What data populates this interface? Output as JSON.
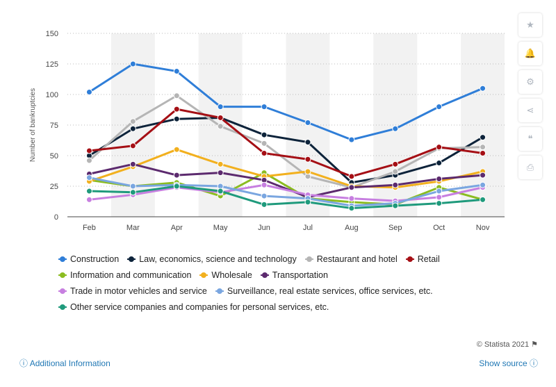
{
  "chart_data": {
    "type": "line",
    "categories": [
      "Feb",
      "Mar",
      "Apr",
      "May",
      "Jun",
      "Jul",
      "Aug",
      "Sep",
      "Oct",
      "Nov"
    ],
    "ylabel": "Number of bankruptcies",
    "xlabel": "",
    "ylim": [
      0,
      150
    ],
    "yticks": [
      0,
      25,
      50,
      75,
      100,
      125,
      150
    ],
    "grid": "horizontal dotted",
    "legend_position": "bottom",
    "series": [
      {
        "name": "Construction",
        "color": "#2f7ed8",
        "values": [
          102,
          125,
          119,
          90,
          90,
          77,
          63,
          72,
          90,
          105
        ]
      },
      {
        "name": "Law, economics, science and technology",
        "color": "#0d233a",
        "values": [
          50,
          72,
          80,
          81,
          67,
          61,
          28,
          34,
          44,
          65
        ]
      },
      {
        "name": "Restaurant and hotel",
        "color": "#b5b5b5",
        "values": [
          46,
          78,
          99,
          74,
          60,
          33,
          24,
          37,
          56,
          57
        ]
      },
      {
        "name": "Retail",
        "color": "#a50f15",
        "values": [
          54,
          58,
          88,
          81,
          52,
          47,
          33,
          43,
          57,
          52
        ]
      },
      {
        "name": "Information and communication",
        "color": "#8bbc21",
        "values": [
          30,
          25,
          28,
          17,
          36,
          15,
          12,
          10,
          24,
          14
        ]
      },
      {
        "name": "Wholesale",
        "color": "#f2b01e",
        "values": [
          29,
          41,
          55,
          43,
          33,
          37,
          25,
          24,
          29,
          37
        ]
      },
      {
        "name": "Transportation",
        "color": "#5c2a6e",
        "values": [
          35,
          43,
          34,
          36,
          30,
          16,
          24,
          26,
          31,
          34
        ]
      },
      {
        "name": "Trade in motor vehicles and service",
        "color": "#c77fe0",
        "values": [
          14,
          18,
          24,
          20,
          26,
          18,
          15,
          13,
          16,
          24
        ]
      },
      {
        "name": "Surveillance, real estate services, office services, etc.",
        "color": "#7aa6e0",
        "values": [
          32,
          25,
          26,
          25,
          17,
          15,
          9,
          11,
          21,
          26
        ]
      },
      {
        "name": "Other service companies and companies for personal services, etc.",
        "color": "#1f9a7c",
        "values": [
          21,
          20,
          25,
          21,
          10,
          12,
          7,
          9,
          11,
          14
        ]
      }
    ]
  },
  "toolbar": {
    "icons": [
      "star-icon",
      "bell-icon",
      "gear-icon",
      "share-icon",
      "quote-icon",
      "print-icon"
    ],
    "glyphs": [
      "★",
      "🔔",
      "⚙",
      "⋖",
      "❝",
      "⎙"
    ]
  },
  "footer": {
    "credit": "© Statista 2021",
    "additional_info": "Additional Information",
    "show_source": "Show source"
  }
}
